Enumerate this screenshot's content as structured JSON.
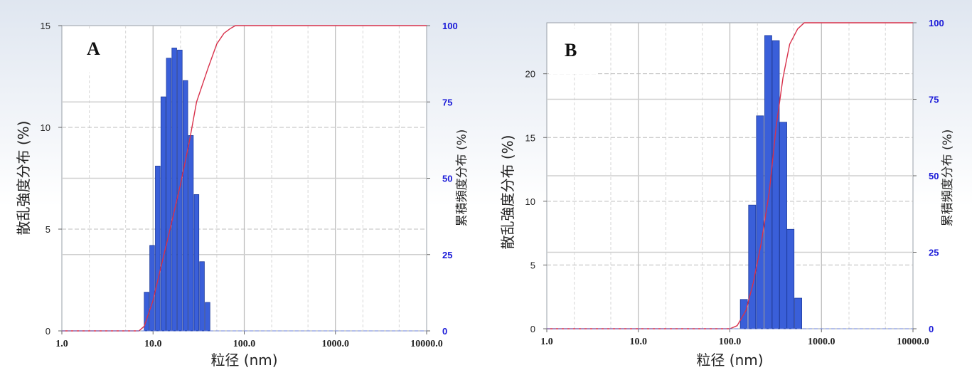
{
  "chart_data": [
    {
      "type": "bar",
      "panel_label": "A",
      "xscale": "log",
      "xlim": [
        1.0,
        10000.0
      ],
      "x_ticks": [
        "1.0",
        "10.0",
        "100.0",
        "1000.0",
        "10000.0"
      ],
      "ylim": [
        0,
        15
      ],
      "y_ticks": [
        "0",
        "5",
        "10",
        "15"
      ],
      "y2lim": [
        0,
        100
      ],
      "y2_ticks": [
        "0",
        "25",
        "50",
        "75",
        "100"
      ],
      "xlabel": "粒径 (nm)",
      "ylabel": "散乱強度分布 (%)",
      "y2label": "累積頻度分布 (%)",
      "grid": true,
      "bar_color": "#3a5fd9",
      "line_color": "#d8304a",
      "series": [
        {
          "values_x": [
            8.0,
            9.2,
            10.6,
            12.2,
            14.0,
            16.1,
            18.5,
            21.3,
            24.5,
            28.2,
            32.4,
            37.3,
            42.9,
            49.4,
            56.8,
            65.3,
            75.1
          ],
          "values_y": [
            1.9,
            4.2,
            8.1,
            11.5,
            13.4,
            13.9,
            13.8,
            12.3,
            9.6,
            6.7,
            3.4,
            1.4,
            0,
            0,
            0,
            0,
            0
          ]
        },
        {
          "x": [
            1.0,
            7.0,
            8.0,
            10.0,
            12.0,
            15.0,
            20.0,
            25.0,
            30.0,
            40.0,
            50.0,
            60.0,
            70.0,
            80.0,
            90.0,
            100.0,
            10000.0
          ],
          "y": [
            0,
            0,
            1.5,
            10,
            20,
            32,
            48,
            62,
            75,
            86,
            94,
            97.5,
            99,
            100,
            100,
            100,
            100
          ]
        }
      ]
    },
    {
      "type": "bar",
      "panel_label": "B",
      "xscale": "log",
      "xlim": [
        1.0,
        10000.0
      ],
      "x_ticks": [
        "1.0",
        "10.0",
        "100.0",
        "1000.0",
        "10000.0"
      ],
      "ylim": [
        0,
        24
      ],
      "y_ticks": [
        "0",
        "5",
        "10",
        "15",
        "20"
      ],
      "y2lim": [
        0,
        100
      ],
      "y2_ticks": [
        "0",
        "25",
        "50",
        "75",
        "100"
      ],
      "xlabel": "粒径 (nm)",
      "ylabel": "散乱強度分布 (%)",
      "y2label": "累積頻度分布 (%)",
      "grid": true,
      "bar_color": "#3a5fd9",
      "line_color": "#d8304a",
      "series": [
        {
          "values_x": [
            130,
            160,
            195,
            240,
            290,
            350,
            420,
            510,
            620
          ],
          "values_y": [
            2.3,
            9.7,
            16.7,
            23.0,
            22.6,
            16.2,
            7.8,
            2.4,
            0
          ]
        },
        {
          "x": [
            1.0,
            100.0,
            120.0,
            150.0,
            180.0,
            220.0,
            270.0,
            320.0,
            380.0,
            450.0,
            550.0,
            650.0,
            10000.0
          ],
          "y": [
            0,
            0,
            1,
            6,
            15,
            28,
            45,
            66,
            82,
            93,
            98,
            100,
            100
          ]
        }
      ]
    }
  ]
}
